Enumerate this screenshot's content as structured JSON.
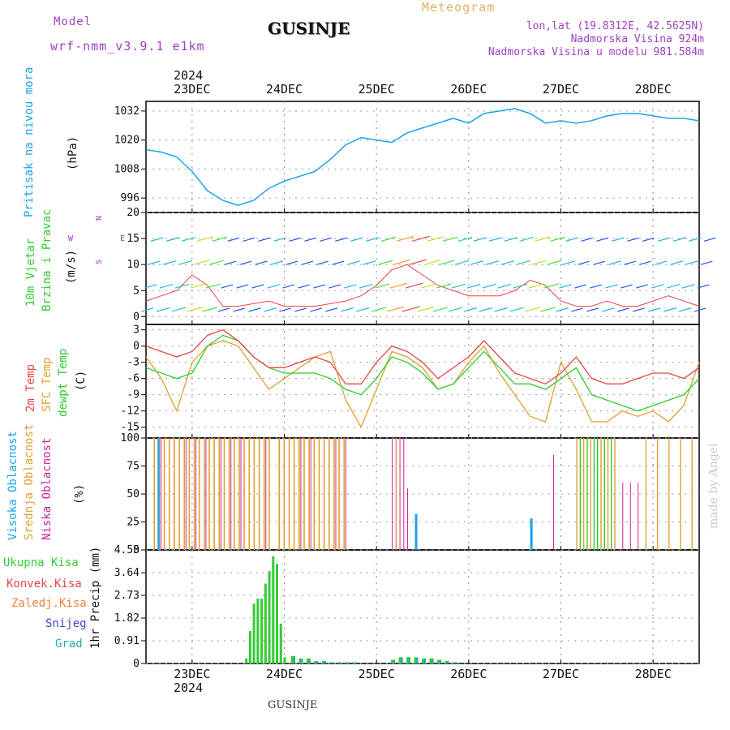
{
  "header": {
    "title": "GUSINJE",
    "meteogram_label": "Meteogram",
    "model_label": "Model",
    "model_name": "wrf-nmm_v3.9.1 e1km",
    "lonlat": "lon,lat (19.8312E, 42.5625N)",
    "elevation": "Nadmorska Visina 924m",
    "model_elevation": "Nadmorska Visina u modelu 981.584m",
    "watermark": "made by Angel",
    "bottom_name": "GUSINJE",
    "year_top": "2024",
    "year_bottom": "2024"
  },
  "panel_labels": {
    "pressure": {
      "name": "Pritisak na nivou mora",
      "unit": "(hPa)"
    },
    "wind": {
      "line1": "10m Vjetar",
      "line2": "Brzina i Pravac",
      "unit": "(m/s)",
      "compass": "N",
      "compass_w": "W",
      "compass_e": "E",
      "compass_s": "S"
    },
    "temp": {
      "t2m": "2m Temp",
      "sfc": "SFC Temp",
      "dew": "dewpt Temp",
      "unit": "(C)"
    },
    "cloud": {
      "high": "Visoka Oblacnost",
      "mid": "Srednja Oblacnost",
      "low": "Niska Oblacnost",
      "unit": "(%)"
    },
    "precip": {
      "total": "Ukupna Kisa",
      "conv": "Konvek.Kisa",
      "frz": "Zaledj.Kisa",
      "snow": "Snijeg",
      "graupel": "Grad",
      "unit": "1hr Precip (mm)"
    }
  },
  "colors": {
    "pressure": "#1aa3e8",
    "t2m": "#e84545",
    "sfc": "#e0a030",
    "dew": "#2ecc2e",
    "cloud_high": "#1aa3e8",
    "cloud_mid": "#e0a030",
    "cloud_low": "#cc2299",
    "precip_total": "#33cc33",
    "precip_snow": "#2255cc",
    "precip_graupel": "#22aaaa",
    "model_text": "#a040c0",
    "meteogram_text": "#e0b060"
  },
  "chart_data": {
    "type": "line",
    "x_days": [
      "23DEC",
      "24DEC",
      "25DEC",
      "26DEC",
      "27DEC",
      "28DEC"
    ],
    "x_range_hours": [
      -12,
      132
    ],
    "panels": {
      "pressure": {
        "ylim": [
          990,
          1036
        ],
        "yticks": [
          996,
          1008,
          1020,
          1032
        ],
        "hours": [
          -12,
          -8,
          -4,
          0,
          4,
          8,
          12,
          16,
          20,
          24,
          28,
          32,
          36,
          40,
          44,
          48,
          52,
          56,
          60,
          64,
          68,
          72,
          76,
          80,
          84,
          88,
          92,
          96,
          100,
          104,
          108,
          112,
          116,
          120,
          124,
          128,
          132
        ],
        "values": [
          1016,
          1015,
          1013,
          1007,
          999,
          995,
          993,
          995,
          1000,
          1003,
          1005,
          1007,
          1012,
          1018,
          1021,
          1020,
          1019,
          1023,
          1025,
          1027,
          1029,
          1027,
          1031,
          1032,
          1033,
          1031,
          1027,
          1028,
          1027,
          1028,
          1030,
          1031,
          1031,
          1030,
          1029,
          1029,
          1028
        ]
      },
      "wind": {
        "ylim": [
          -1.5,
          20
        ],
        "yticks": [
          0,
          5,
          10,
          15,
          20
        ],
        "hours": [
          -12,
          -8,
          -4,
          0,
          4,
          8,
          12,
          16,
          20,
          24,
          28,
          32,
          36,
          40,
          44,
          48,
          52,
          56,
          60,
          64,
          68,
          72,
          76,
          80,
          84,
          88,
          92,
          96,
          100,
          104,
          108,
          112,
          116,
          120,
          124,
          128,
          132
        ],
        "speed": [
          3,
          4,
          5,
          8,
          6,
          2,
          2,
          2.5,
          3,
          2,
          2,
          2,
          2.5,
          3,
          4,
          6,
          9,
          10,
          8,
          6,
          5,
          4,
          4,
          4,
          5,
          7,
          6,
          3,
          2,
          2,
          3,
          2,
          2,
          3,
          4,
          3,
          2
        ]
      },
      "temp": {
        "ylim": [
          -17,
          4
        ],
        "yticks": [
          3,
          0,
          -3,
          -6,
          -9,
          -12,
          -15
        ],
        "hours": [
          -12,
          -8,
          -4,
          0,
          4,
          8,
          12,
          16,
          20,
          24,
          28,
          32,
          36,
          40,
          44,
          48,
          52,
          56,
          60,
          64,
          68,
          72,
          76,
          80,
          84,
          88,
          92,
          96,
          100,
          104,
          108,
          112,
          116,
          120,
          124,
          128,
          132
        ],
        "t2m": [
          0,
          -1,
          -2,
          -1,
          2,
          3,
          1,
          -2,
          -4,
          -4,
          -3,
          -2,
          -3,
          -7,
          -7,
          -3,
          0,
          -1,
          -3,
          -6,
          -4,
          -2,
          1,
          -2,
          -5,
          -6,
          -7,
          -5,
          -2,
          -6,
          -7,
          -7,
          -6,
          -5,
          -5,
          -6,
          -4
        ],
        "sfc": [
          -2,
          -6,
          -12,
          -3,
          0,
          1,
          0,
          -4,
          -8,
          -6,
          -4,
          -2,
          -1,
          -10,
          -15,
          -8,
          -1,
          -2,
          -4,
          -8,
          -7,
          -3,
          0,
          -5,
          -9,
          -13,
          -14,
          -3,
          -8,
          -14,
          -14,
          -12,
          -13,
          -12,
          -14,
          -11,
          -3
        ],
        "dew": [
          -4,
          -5,
          -6,
          -5,
          0,
          2,
          1,
          -2,
          -4,
          -5,
          -5,
          -5,
          -6,
          -8,
          -9,
          -6,
          -2,
          -3,
          -5,
          -8,
          -7,
          -4,
          -1,
          -4,
          -7,
          -7,
          -8,
          -6,
          -4,
          -9,
          -10,
          -11,
          -12,
          -11,
          -10,
          -9,
          -6
        ]
      },
      "cloud": {
        "ylim": [
          0,
          100
        ],
        "yticks": [
          0,
          25,
          50,
          75,
          100
        ]
      },
      "precip": {
        "ylim": [
          0,
          4.55
        ],
        "yticks": [
          0,
          0.91,
          1.82,
          2.73,
          3.64,
          4.55
        ],
        "hours": [
          14,
          15,
          16,
          17,
          18,
          19,
          20,
          21,
          22,
          23,
          24,
          26,
          28,
          30,
          32,
          34,
          36,
          38,
          40,
          42,
          52,
          54,
          56,
          58,
          60,
          62,
          64,
          66,
          68
        ],
        "total": [
          0.2,
          1.3,
          2.4,
          2.6,
          2.6,
          3.2,
          3.7,
          4.3,
          4.0,
          1.6,
          0.25,
          0.3,
          0.2,
          0.2,
          0.1,
          0.1,
          0.05,
          0.05,
          0.05,
          0.05,
          0.15,
          0.25,
          0.25,
          0.25,
          0.2,
          0.2,
          0.15,
          0.1,
          0.05
        ]
      }
    }
  }
}
